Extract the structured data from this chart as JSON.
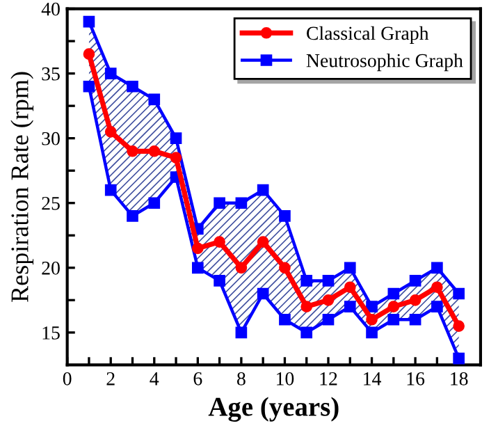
{
  "chart_data": {
    "type": "line",
    "xlabel": "Age (years)",
    "ylabel": "Respiration Rate (rpm)",
    "x": [
      1,
      2,
      3,
      4,
      5,
      6,
      7,
      8,
      9,
      10,
      11,
      12,
      13,
      14,
      15,
      16,
      17,
      18
    ],
    "series": [
      {
        "name": "Classical Graph",
        "color": "#ff0000",
        "marker": "circle",
        "values": [
          36.5,
          30.5,
          29,
          29,
          28.5,
          21.5,
          22,
          20,
          22,
          20,
          17,
          17.5,
          18.5,
          16,
          17,
          17.5,
          18.5,
          15.5
        ]
      },
      {
        "name": "Neutrosophic Graph",
        "color": "#0000ff",
        "marker": "square",
        "values": [
          39,
          35,
          34,
          33,
          30,
          23,
          25,
          25,
          26,
          24,
          19,
          19,
          20,
          17,
          18,
          19,
          20,
          18
        ],
        "lower": [
          34,
          26,
          24,
          25,
          27,
          20,
          19,
          15,
          18,
          16,
          15,
          16,
          17,
          15,
          16,
          16,
          17,
          13
        ],
        "upper": [
          39,
          35,
          34,
          33,
          30,
          23,
          25,
          25,
          26,
          24,
          19,
          19,
          20,
          17,
          18,
          19,
          20,
          18
        ]
      },
      {
        "color": "#0000ff",
        "marker": "square",
        "values": [
          34,
          26,
          24,
          25,
          27,
          20,
          19,
          15,
          18,
          16,
          15,
          16,
          17,
          15,
          16,
          16,
          17,
          13
        ]
      }
    ],
    "xlim": [
      0,
      19
    ],
    "ylim": [
      12.5,
      40
    ],
    "xticks": [
      0,
      {
        "value": 1,
        "label": null
      },
      2,
      {
        "value": 3,
        "label": null
      },
      4,
      {
        "value": 5,
        "label": null
      },
      6,
      {
        "value": 7,
        "label": null
      },
      8,
      {
        "value": 9,
        "label": null
      },
      10,
      {
        "value": 11,
        "label": null
      },
      12,
      {
        "value": 13,
        "label": null
      },
      14,
      {
        "value": 15,
        "label": null
      },
      16,
      {
        "value": 17,
        "label": null
      },
      18,
      {
        "value": 19,
        "label": null
      }
    ],
    "yticks": [
      15,
      {
        "value": 17.5,
        "label": null
      },
      20,
      {
        "value": 22.5,
        "label": null
      },
      25,
      {
        "value": 27.5,
        "label": null
      },
      30,
      {
        "value": 32.5,
        "label": null
      },
      35,
      {
        "value": 37.5,
        "label": null
      },
      40
    ],
    "legend": "top right",
    "grid": false
  }
}
